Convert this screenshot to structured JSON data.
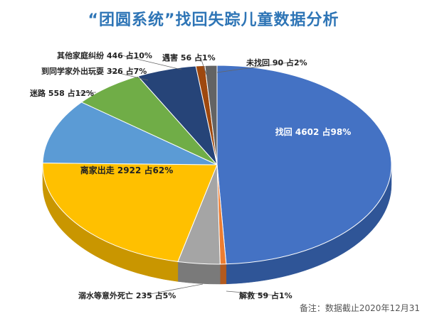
{
  "chart_data": {
    "type": "pie",
    "title": "“团圆系统”找回失踪儿童数据分析",
    "note": "备注：数据截止2020年12月31",
    "slices": [
      {
        "category": "找回",
        "value": 4602,
        "percent": 98,
        "label": "找回 4602 占98%",
        "color": "#4472c4",
        "side": "#2f5597"
      },
      {
        "category": "解救",
        "value": 59,
        "percent": 1,
        "label": "解救 59 占1%",
        "color": "#ed7d31",
        "side": "#b25a1f"
      },
      {
        "category": "溺水等意外死亡",
        "value": 235,
        "percent": 5,
        "label": "溺水等意外死亡 235 占5%",
        "color": "#a5a5a5",
        "side": "#7a7a7a"
      },
      {
        "category": "离家出走",
        "value": 2922,
        "percent": 62,
        "label": "离家出走 2922 占62%",
        "color": "#ffc000",
        "side": "#c99600"
      },
      {
        "category": "迷路",
        "value": 558,
        "percent": 12,
        "label": "迷路 558 占12%",
        "color": "#5b9bd5",
        "side": "#3f77aa"
      },
      {
        "category": "到同学家外出玩耍",
        "value": 326,
        "percent": 7,
        "label": "到同学家外出玩耍 326 占7%",
        "color": "#70ad47",
        "side": "#4f7f30"
      },
      {
        "category": "其他家庭纠纷",
        "value": 446,
        "percent": 10,
        "label": "其他家庭纠纷 446 占10%",
        "color": "#264478",
        "side": "#172c50"
      },
      {
        "category": "遇害",
        "value": 56,
        "percent": 1,
        "label": "遇害 56 占1%",
        "color": "#9e480e",
        "side": "#6e3209"
      },
      {
        "category": "未找回",
        "value": 90,
        "percent": 2,
        "label": "未找回 90 占2%",
        "color": "#636363",
        "side": "#404040"
      }
    ]
  }
}
